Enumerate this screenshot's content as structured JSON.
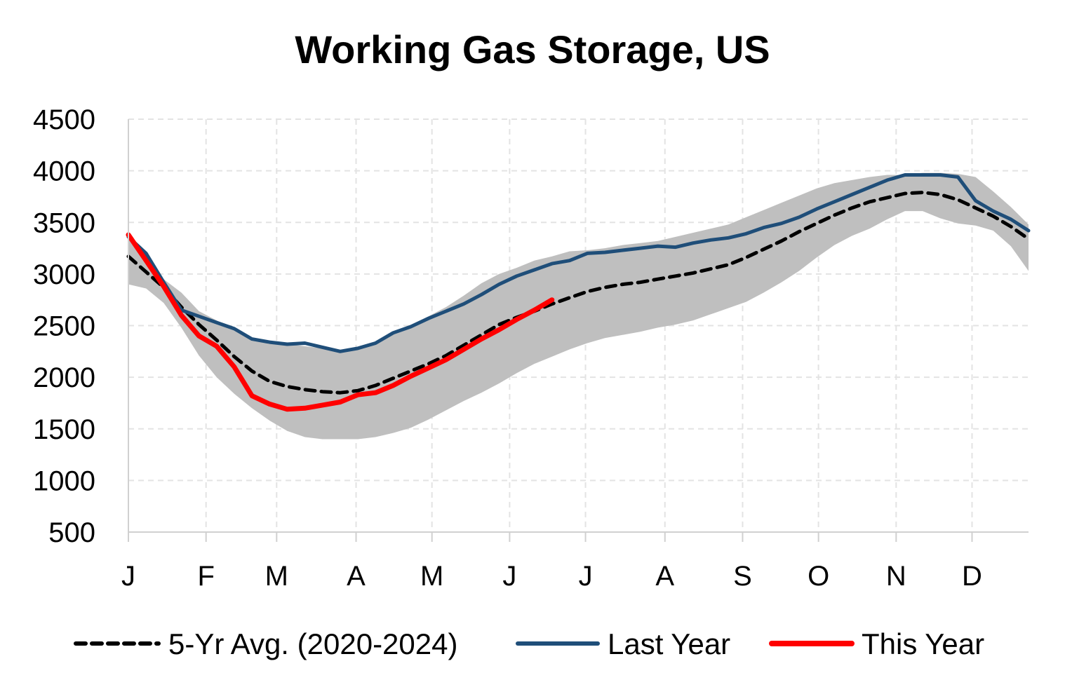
{
  "chart_data": {
    "type": "line",
    "title": "Working Gas Storage, US",
    "xlabel": "",
    "ylabel": "",
    "ylim": [
      500,
      4500
    ],
    "yticks": [
      500,
      1000,
      1500,
      2000,
      2500,
      3000,
      3500,
      4000,
      4500
    ],
    "x_unit": "week of year (1-52)",
    "xlim": [
      1,
      52
    ],
    "month_ticks": [
      {
        "label": "J",
        "week": 1
      },
      {
        "label": "F",
        "week": 5.4
      },
      {
        "label": "M",
        "week": 9.4
      },
      {
        "label": "A",
        "week": 13.9
      },
      {
        "label": "M",
        "week": 18.2
      },
      {
        "label": "J",
        "week": 22.6
      },
      {
        "label": "J",
        "week": 26.9
      },
      {
        "label": "A",
        "week": 31.4
      },
      {
        "label": "S",
        "week": 35.8
      },
      {
        "label": "O",
        "week": 40.1
      },
      {
        "label": "N",
        "week": 44.5
      },
      {
        "label": "D",
        "week": 48.8
      }
    ],
    "grid": true,
    "legend_position": "bottom",
    "band": {
      "weeks": [
        1,
        2,
        3,
        4,
        5,
        6,
        7,
        8,
        9,
        10,
        11,
        12,
        13,
        14,
        15,
        16,
        17,
        18,
        19,
        20,
        21,
        22,
        23,
        24,
        25,
        26,
        27,
        28,
        29,
        30,
        31,
        32,
        33,
        34,
        35,
        36,
        37,
        38,
        39,
        40,
        41,
        42,
        43,
        44,
        45,
        46,
        47,
        48,
        49,
        50,
        51,
        52
      ],
      "upper": [
        3370,
        3210,
        2950,
        2820,
        2640,
        2550,
        2460,
        2380,
        2350,
        2320,
        2300,
        2280,
        2260,
        2280,
        2340,
        2430,
        2500,
        2590,
        2680,
        2790,
        2910,
        3000,
        3060,
        3130,
        3170,
        3220,
        3230,
        3250,
        3280,
        3300,
        3320,
        3360,
        3400,
        3440,
        3480,
        3550,
        3620,
        3690,
        3760,
        3830,
        3880,
        3910,
        3940,
        3960,
        3960,
        3980,
        3980,
        3970,
        3940,
        3800,
        3650,
        3480
      ],
      "lower": [
        2900,
        2860,
        2720,
        2480,
        2210,
        2000,
        1840,
        1700,
        1580,
        1480,
        1420,
        1400,
        1400,
        1400,
        1420,
        1460,
        1510,
        1590,
        1680,
        1770,
        1850,
        1940,
        2040,
        2130,
        2200,
        2270,
        2330,
        2380,
        2410,
        2440,
        2480,
        2510,
        2550,
        2610,
        2670,
        2730,
        2820,
        2920,
        3030,
        3160,
        3280,
        3370,
        3440,
        3530,
        3610,
        3610,
        3540,
        3490,
        3470,
        3420,
        3270,
        3030
      ]
    },
    "series": [
      {
        "name": "5-Yr Avg. (2020-2024)",
        "color": "#000000",
        "style": "dashed",
        "weeks": [
          1,
          2,
          3,
          4,
          5,
          6,
          7,
          8,
          9,
          10,
          11,
          12,
          13,
          14,
          15,
          16,
          17,
          18,
          19,
          20,
          21,
          22,
          23,
          24,
          25,
          26,
          27,
          28,
          29,
          30,
          31,
          32,
          33,
          34,
          35,
          36,
          37,
          38,
          39,
          40,
          41,
          42,
          43,
          44,
          45,
          46,
          47,
          48,
          49,
          50,
          51,
          52
        ],
        "values": [
          3170,
          3020,
          2870,
          2680,
          2510,
          2360,
          2200,
          2060,
          1960,
          1910,
          1880,
          1860,
          1850,
          1870,
          1920,
          1990,
          2060,
          2130,
          2210,
          2310,
          2410,
          2510,
          2580,
          2640,
          2710,
          2770,
          2830,
          2870,
          2900,
          2920,
          2950,
          2980,
          3010,
          3050,
          3090,
          3160,
          3240,
          3320,
          3410,
          3490,
          3570,
          3640,
          3700,
          3740,
          3780,
          3790,
          3770,
          3720,
          3640,
          3560,
          3460,
          3340
        ]
      },
      {
        "name": "Last Year",
        "color": "#1f4e79",
        "style": "solid",
        "weeks": [
          1,
          2,
          3,
          4,
          5,
          6,
          7,
          8,
          9,
          10,
          11,
          12,
          13,
          14,
          15,
          16,
          17,
          18,
          19,
          20,
          21,
          22,
          23,
          24,
          25,
          26,
          27,
          28,
          29,
          30,
          31,
          32,
          33,
          34,
          35,
          36,
          37,
          38,
          39,
          40,
          41,
          42,
          43,
          44,
          45,
          46,
          47,
          48,
          49,
          50,
          51,
          52
        ],
        "values": [
          3360,
          3200,
          2920,
          2650,
          2590,
          2530,
          2470,
          2370,
          2340,
          2320,
          2330,
          2290,
          2250,
          2280,
          2330,
          2430,
          2490,
          2570,
          2640,
          2710,
          2800,
          2900,
          2980,
          3040,
          3100,
          3130,
          3200,
          3210,
          3230,
          3250,
          3270,
          3260,
          3300,
          3330,
          3350,
          3390,
          3450,
          3490,
          3550,
          3630,
          3700,
          3770,
          3840,
          3910,
          3960,
          3960,
          3960,
          3940,
          3710,
          3610,
          3530,
          3420
        ]
      },
      {
        "name": "This Year",
        "color": "#ff0000",
        "style": "solid",
        "weeks": [
          1,
          2,
          3,
          4,
          5,
          6,
          7,
          8,
          9,
          10,
          11,
          12,
          13,
          14,
          15,
          16,
          17,
          18,
          19,
          20,
          21,
          22,
          23,
          24,
          25
        ],
        "values": [
          3380,
          3130,
          2880,
          2600,
          2400,
          2300,
          2100,
          1820,
          1740,
          1690,
          1700,
          1730,
          1760,
          1830,
          1850,
          1920,
          2010,
          2090,
          2170,
          2270,
          2370,
          2460,
          2560,
          2650,
          2750
        ]
      }
    ]
  }
}
